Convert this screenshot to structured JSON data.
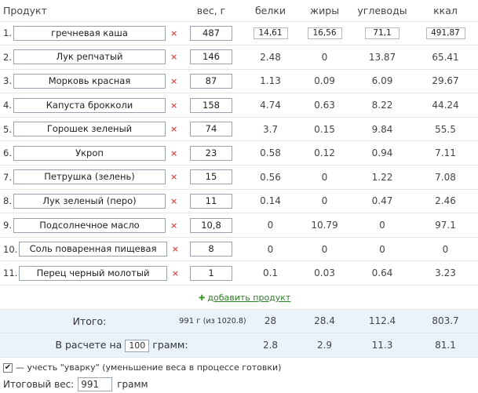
{
  "headers": {
    "product": "Продукт",
    "weight": "вес, г",
    "protein": "белки",
    "fat": "жиры",
    "carbs": "углеводы",
    "kcal": "ккал"
  },
  "rows": [
    {
      "num": "1.",
      "name": "гречневая каша",
      "weight": "487",
      "protein": "14,61",
      "fat": "16,56",
      "carbs": "71,1",
      "kcal": "491,87"
    },
    {
      "num": "2.",
      "name": "Лук репчатый",
      "weight": "146",
      "protein": "2.48",
      "fat": "0",
      "carbs": "13.87",
      "kcal": "65.41"
    },
    {
      "num": "3.",
      "name": "Морковь красная",
      "weight": "87",
      "protein": "1.13",
      "fat": "0.09",
      "carbs": "6.09",
      "kcal": "29.67"
    },
    {
      "num": "4.",
      "name": "Капуста брокколи",
      "weight": "158",
      "protein": "4.74",
      "fat": "0.63",
      "carbs": "8.22",
      "kcal": "44.24"
    },
    {
      "num": "5.",
      "name": "Горошек зеленый",
      "weight": "74",
      "protein": "3.7",
      "fat": "0.15",
      "carbs": "9.84",
      "kcal": "55.5"
    },
    {
      "num": "6.",
      "name": "Укроп",
      "weight": "23",
      "protein": "0.58",
      "fat": "0.12",
      "carbs": "0.94",
      "kcal": "7.11"
    },
    {
      "num": "7.",
      "name": "Петрушка (зелень)",
      "weight": "15",
      "protein": "0.56",
      "fat": "0",
      "carbs": "1.22",
      "kcal": "7.08"
    },
    {
      "num": "8.",
      "name": "Лук зеленый (перо)",
      "weight": "11",
      "protein": "0.14",
      "fat": "0",
      "carbs": "0.47",
      "kcal": "2.46"
    },
    {
      "num": "9.",
      "name": "Подсолнечное масло",
      "weight": "10,8",
      "protein": "0",
      "fat": "10.79",
      "carbs": "0",
      "kcal": "97.1"
    },
    {
      "num": "10.",
      "name": "Соль поваренная пищевая",
      "weight": "8",
      "protein": "0",
      "fat": "0",
      "carbs": "0",
      "kcal": "0"
    },
    {
      "num": "11.",
      "name": "Перец черный молотый",
      "weight": "1",
      "protein": "0.1",
      "fat": "0.03",
      "carbs": "0.64",
      "kcal": "3.23"
    }
  ],
  "delete_icon": "×",
  "add_product": {
    "icon": "plus-icon",
    "label": "добавить продукт"
  },
  "total": {
    "label": "Итого:",
    "weight": "991 г",
    "weight_note": "(из 1020.8)",
    "protein": "28",
    "fat": "28.4",
    "carbs": "112.4",
    "kcal": "803.7"
  },
  "per": {
    "prefix": "В расчете на",
    "amount": "100",
    "suffix": "грамм:",
    "protein": "2.8",
    "fat": "2.9",
    "carbs": "11.3",
    "kcal": "81.1"
  },
  "options": {
    "boil_checked": true,
    "boil_label": "— учесть \"уварку\" (уменьшение веса в процессе готовки)",
    "final_weight_label": "Итоговый вес:",
    "final_weight_value": "991",
    "final_weight_unit": "грамм"
  },
  "colors": {
    "accent_green": "#2b7d23",
    "delete_red": "#d9534f",
    "summary_bg": "#eaf2fb"
  }
}
